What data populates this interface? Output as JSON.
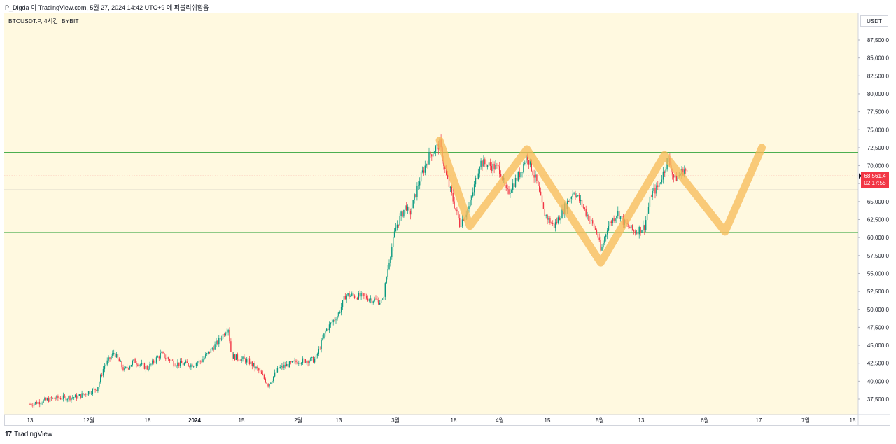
{
  "header": {
    "publish_text": "P_Digda 이 TradingView.com, 5월 27, 2024 14:42 UTC+9 에 퍼블리쉬함음"
  },
  "symbol_line": "BTCUSDT.P, 4시간, BYBIT",
  "unit": "USDT",
  "current_price": {
    "value": 68561.4,
    "label": "68,561.4",
    "countdown": "02:17:55",
    "color": "#f23645"
  },
  "footer": {
    "logo_glyph": "17",
    "brand": "TradingView"
  },
  "chart_data": {
    "type": "candlestick",
    "title": "",
    "ylim": [
      36000,
      90000
    ],
    "y_ticks": [
      "37,500.0",
      "40,000.0",
      "42,500.0",
      "45,000.0",
      "47,500.0",
      "50,000.0",
      "52,500.0",
      "55,000.0",
      "57,500.0",
      "60,000.0",
      "62,500.0",
      "65,000.0",
      "67,500.0",
      "70,000.0",
      "72,500.0",
      "75,000.0",
      "77,500.0",
      "80,000.0",
      "82,500.0",
      "85,000.0",
      "87,500.0"
    ],
    "x_labels": [
      "13",
      "12월",
      "18",
      "2024",
      "15",
      "2월",
      "13",
      "3월",
      "18",
      "4월",
      "15",
      "5월",
      "13",
      "6월",
      "17",
      "7월",
      "15"
    ],
    "price_path": [
      [
        "2023-11-13",
        36800
      ],
      [
        "2023-11-20",
        37600
      ],
      [
        "2023-11-27",
        37800
      ],
      [
        "2023-12-03",
        39000
      ],
      [
        "2023-12-05",
        42000
      ],
      [
        "2023-12-08",
        44000
      ],
      [
        "2023-12-11",
        41500
      ],
      [
        "2023-12-14",
        42800
      ],
      [
        "2023-12-18",
        41800
      ],
      [
        "2023-12-22",
        43800
      ],
      [
        "2023-12-26",
        42500
      ],
      [
        "2023-12-31",
        42300
      ],
      [
        "2024-01-03",
        42800
      ],
      [
        "2024-01-08",
        45500
      ],
      [
        "2024-01-11",
        47500
      ],
      [
        "2024-01-12",
        43500
      ],
      [
        "2024-01-17",
        42800
      ],
      [
        "2024-01-20",
        41500
      ],
      [
        "2024-01-23",
        39500
      ],
      [
        "2024-01-26",
        41800
      ],
      [
        "2024-02-01",
        42800
      ],
      [
        "2024-02-06",
        43000
      ],
      [
        "2024-02-09",
        47000
      ],
      [
        "2024-02-13",
        49500
      ],
      [
        "2024-02-15",
        52000
      ],
      [
        "2024-02-20",
        51800
      ],
      [
        "2024-02-26",
        51000
      ],
      [
        "2024-02-28",
        57000
      ],
      [
        "2024-03-01",
        61500
      ],
      [
        "2024-03-04",
        64500
      ],
      [
        "2024-03-05",
        63000
      ],
      [
        "2024-03-08",
        68000
      ],
      [
        "2024-03-11",
        71500
      ],
      [
        "2024-03-14",
        73000
      ],
      [
        "2024-03-16",
        68500
      ],
      [
        "2024-03-19",
        63500
      ],
      [
        "2024-03-20",
        61800
      ],
      [
        "2024-03-23",
        64500
      ],
      [
        "2024-03-26",
        70500
      ],
      [
        "2024-03-29",
        70000
      ],
      [
        "2024-04-01",
        69500
      ],
      [
        "2024-04-03",
        66000
      ],
      [
        "2024-04-07",
        69000
      ],
      [
        "2024-04-09",
        71500
      ],
      [
        "2024-04-12",
        67500
      ],
      [
        "2024-04-14",
        63500
      ],
      [
        "2024-04-17",
        61500
      ],
      [
        "2024-04-20",
        64000
      ],
      [
        "2024-04-23",
        66500
      ],
      [
        "2024-04-26",
        64000
      ],
      [
        "2024-04-30",
        60500
      ],
      [
        "2024-05-01",
        58000
      ],
      [
        "2024-05-03",
        61500
      ],
      [
        "2024-05-06",
        63500
      ],
      [
        "2024-05-08",
        62000
      ],
      [
        "2024-05-11",
        60800
      ],
      [
        "2024-05-14",
        61500
      ],
      [
        "2024-05-16",
        66000
      ],
      [
        "2024-05-18",
        67000
      ],
      [
        "2024-05-20",
        69500
      ],
      [
        "2024-05-21",
        71000
      ],
      [
        "2024-05-23",
        68000
      ],
      [
        "2024-05-26",
        69500
      ],
      [
        "2024-05-27",
        68561.4
      ]
    ],
    "horizontal_lines": [
      {
        "price": 71850,
        "color": "#4caf50"
      },
      {
        "price": 60700,
        "color": "#4caf50"
      },
      {
        "price": 66600,
        "color": "#787b86"
      },
      {
        "price": 68561.4,
        "color": "#f23645",
        "style": "dotted"
      }
    ],
    "drawn_zigzag": {
      "color": "#f7b955",
      "points": [
        [
          "2024-03-14",
          73500
        ],
        [
          "2024-03-23",
          61600
        ],
        [
          "2024-04-09",
          72300
        ],
        [
          "2024-05-01",
          56500
        ],
        [
          "2024-05-20",
          71500
        ],
        [
          "2024-06-07",
          60800
        ],
        [
          "2024-06-18",
          72500
        ]
      ]
    },
    "background": "#fff9e0",
    "grid": false
  }
}
